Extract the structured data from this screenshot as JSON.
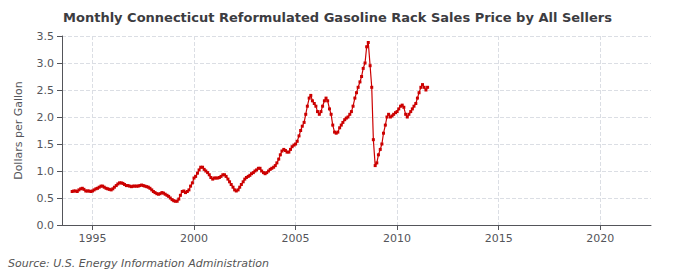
{
  "chart_data": {
    "type": "line",
    "title": "Monthly Connecticut Reformulated Gasoline Rack Sales Price by All Sellers",
    "ylabel": "Dollars per Gallon",
    "annotation": "Source: U.S. Energy Information Administration",
    "color": "#cc0000",
    "marker": "square",
    "grid": true,
    "xlim": [
      1993.5,
      2022.5
    ],
    "ylim": [
      0.0,
      3.5
    ],
    "xticks": [
      1995,
      2000,
      2005,
      2010,
      2015,
      2020
    ],
    "yticks": [
      {
        "value": 0.0,
        "label": "0.0"
      },
      0.5,
      {
        "value": 1.0,
        "label": "1.0"
      },
      1.5,
      {
        "value": 2.0,
        "label": "2.0"
      },
      2.5,
      {
        "value": 3.0,
        "label": "3.0"
      },
      3.5
    ],
    "x": [
      1994.0,
      1994.08,
      1994.17,
      1994.25,
      1994.33,
      1994.42,
      1994.5,
      1994.58,
      1994.67,
      1994.75,
      1994.83,
      1994.92,
      1995.0,
      1995.08,
      1995.17,
      1995.25,
      1995.33,
      1995.42,
      1995.5,
      1995.58,
      1995.67,
      1995.75,
      1995.83,
      1995.92,
      1996.0,
      1996.08,
      1996.17,
      1996.25,
      1996.33,
      1996.42,
      1996.5,
      1996.58,
      1996.67,
      1996.75,
      1996.83,
      1996.92,
      1997.0,
      1997.08,
      1997.17,
      1997.25,
      1997.33,
      1997.42,
      1997.5,
      1997.58,
      1997.67,
      1997.75,
      1997.83,
      1997.92,
      1998.0,
      1998.08,
      1998.17,
      1998.25,
      1998.33,
      1998.42,
      1998.5,
      1998.58,
      1998.67,
      1998.75,
      1998.83,
      1998.92,
      1999.0,
      1999.08,
      1999.17,
      1999.25,
      1999.33,
      1999.42,
      1999.5,
      1999.58,
      1999.67,
      1999.75,
      1999.83,
      1999.92,
      2000.0,
      2000.08,
      2000.17,
      2000.25,
      2000.33,
      2000.42,
      2000.5,
      2000.58,
      2000.67,
      2000.75,
      2000.83,
      2000.92,
      2001.0,
      2001.08,
      2001.17,
      2001.25,
      2001.33,
      2001.42,
      2001.5,
      2001.58,
      2001.67,
      2001.75,
      2001.83,
      2001.92,
      2002.0,
      2002.08,
      2002.17,
      2002.25,
      2002.33,
      2002.42,
      2002.5,
      2002.58,
      2002.67,
      2002.75,
      2002.83,
      2002.92,
      2003.0,
      2003.08,
      2003.17,
      2003.25,
      2003.33,
      2003.42,
      2003.5,
      2003.58,
      2003.67,
      2003.75,
      2003.83,
      2003.92,
      2004.0,
      2004.08,
      2004.17,
      2004.25,
      2004.33,
      2004.42,
      2004.5,
      2004.58,
      2004.67,
      2004.75,
      2004.83,
      2004.92,
      2005.0,
      2005.08,
      2005.17,
      2005.25,
      2005.33,
      2005.42,
      2005.5,
      2005.58,
      2005.67,
      2005.75,
      2005.83,
      2005.92,
      2006.0,
      2006.08,
      2006.17,
      2006.25,
      2006.33,
      2006.42,
      2006.5,
      2006.58,
      2006.67,
      2006.75,
      2006.83,
      2006.92,
      2007.0,
      2007.08,
      2007.17,
      2007.25,
      2007.33,
      2007.42,
      2007.5,
      2007.58,
      2007.67,
      2007.75,
      2007.83,
      2007.92,
      2008.0,
      2008.08,
      2008.17,
      2008.25,
      2008.33,
      2008.42,
      2008.5,
      2008.58,
      2008.67,
      2008.75,
      2008.83,
      2008.92,
      2009.0,
      2009.08,
      2009.17,
      2009.25,
      2009.33,
      2009.42,
      2009.5,
      2009.58,
      2009.67,
      2009.75,
      2009.83,
      2009.92,
      2010.0,
      2010.08,
      2010.17,
      2010.25,
      2010.33,
      2010.42,
      2010.5,
      2010.58,
      2010.67,
      2010.75,
      2010.83,
      2010.92,
      2011.0,
      2011.08,
      2011.17,
      2011.25,
      2011.33,
      2011.42,
      2011.5
    ],
    "values": [
      0.62,
      0.63,
      0.63,
      0.62,
      0.65,
      0.67,
      0.68,
      0.66,
      0.63,
      0.63,
      0.63,
      0.62,
      0.63,
      0.65,
      0.67,
      0.68,
      0.7,
      0.72,
      0.72,
      0.7,
      0.68,
      0.67,
      0.66,
      0.65,
      0.67,
      0.7,
      0.73,
      0.76,
      0.78,
      0.78,
      0.77,
      0.75,
      0.73,
      0.73,
      0.72,
      0.71,
      0.72,
      0.72,
      0.72,
      0.72,
      0.73,
      0.74,
      0.73,
      0.72,
      0.71,
      0.7,
      0.68,
      0.65,
      0.62,
      0.6,
      0.58,
      0.57,
      0.58,
      0.6,
      0.59,
      0.57,
      0.55,
      0.53,
      0.5,
      0.47,
      0.45,
      0.44,
      0.44,
      0.48,
      0.55,
      0.62,
      0.63,
      0.6,
      0.62,
      0.65,
      0.72,
      0.78,
      0.87,
      0.9,
      0.96,
      1.02,
      1.07,
      1.07,
      1.03,
      1.0,
      0.97,
      0.93,
      0.88,
      0.85,
      0.87,
      0.87,
      0.87,
      0.88,
      0.9,
      0.93,
      0.93,
      0.9,
      0.85,
      0.8,
      0.75,
      0.7,
      0.65,
      0.63,
      0.65,
      0.7,
      0.75,
      0.8,
      0.85,
      0.88,
      0.9,
      0.92,
      0.95,
      0.97,
      1.0,
      1.02,
      1.05,
      1.05,
      1.0,
      0.97,
      0.95,
      0.97,
      1.0,
      1.03,
      1.05,
      1.07,
      1.1,
      1.15,
      1.22,
      1.3,
      1.37,
      1.4,
      1.38,
      1.35,
      1.35,
      1.4,
      1.45,
      1.48,
      1.5,
      1.55,
      1.65,
      1.75,
      1.83,
      1.9,
      2.05,
      2.2,
      2.35,
      2.4,
      2.3,
      2.25,
      2.2,
      2.1,
      2.05,
      2.1,
      2.2,
      2.3,
      2.35,
      2.3,
      2.15,
      2.05,
      1.85,
      1.72,
      1.7,
      1.72,
      1.8,
      1.85,
      1.9,
      1.95,
      1.98,
      2.0,
      2.05,
      2.1,
      2.2,
      2.35,
      2.45,
      2.55,
      2.65,
      2.75,
      2.9,
      3.0,
      3.3,
      3.38,
      2.95,
      2.55,
      1.58,
      1.1,
      1.15,
      1.3,
      1.4,
      1.5,
      1.7,
      1.85,
      2.0,
      2.05,
      2.0,
      2.02,
      2.05,
      2.08,
      2.1,
      2.15,
      2.2,
      2.22,
      2.18,
      2.05,
      2.0,
      2.05,
      2.1,
      2.15,
      2.2,
      2.25,
      2.35,
      2.45,
      2.55,
      2.6,
      2.55,
      2.5,
      2.55
    ]
  }
}
